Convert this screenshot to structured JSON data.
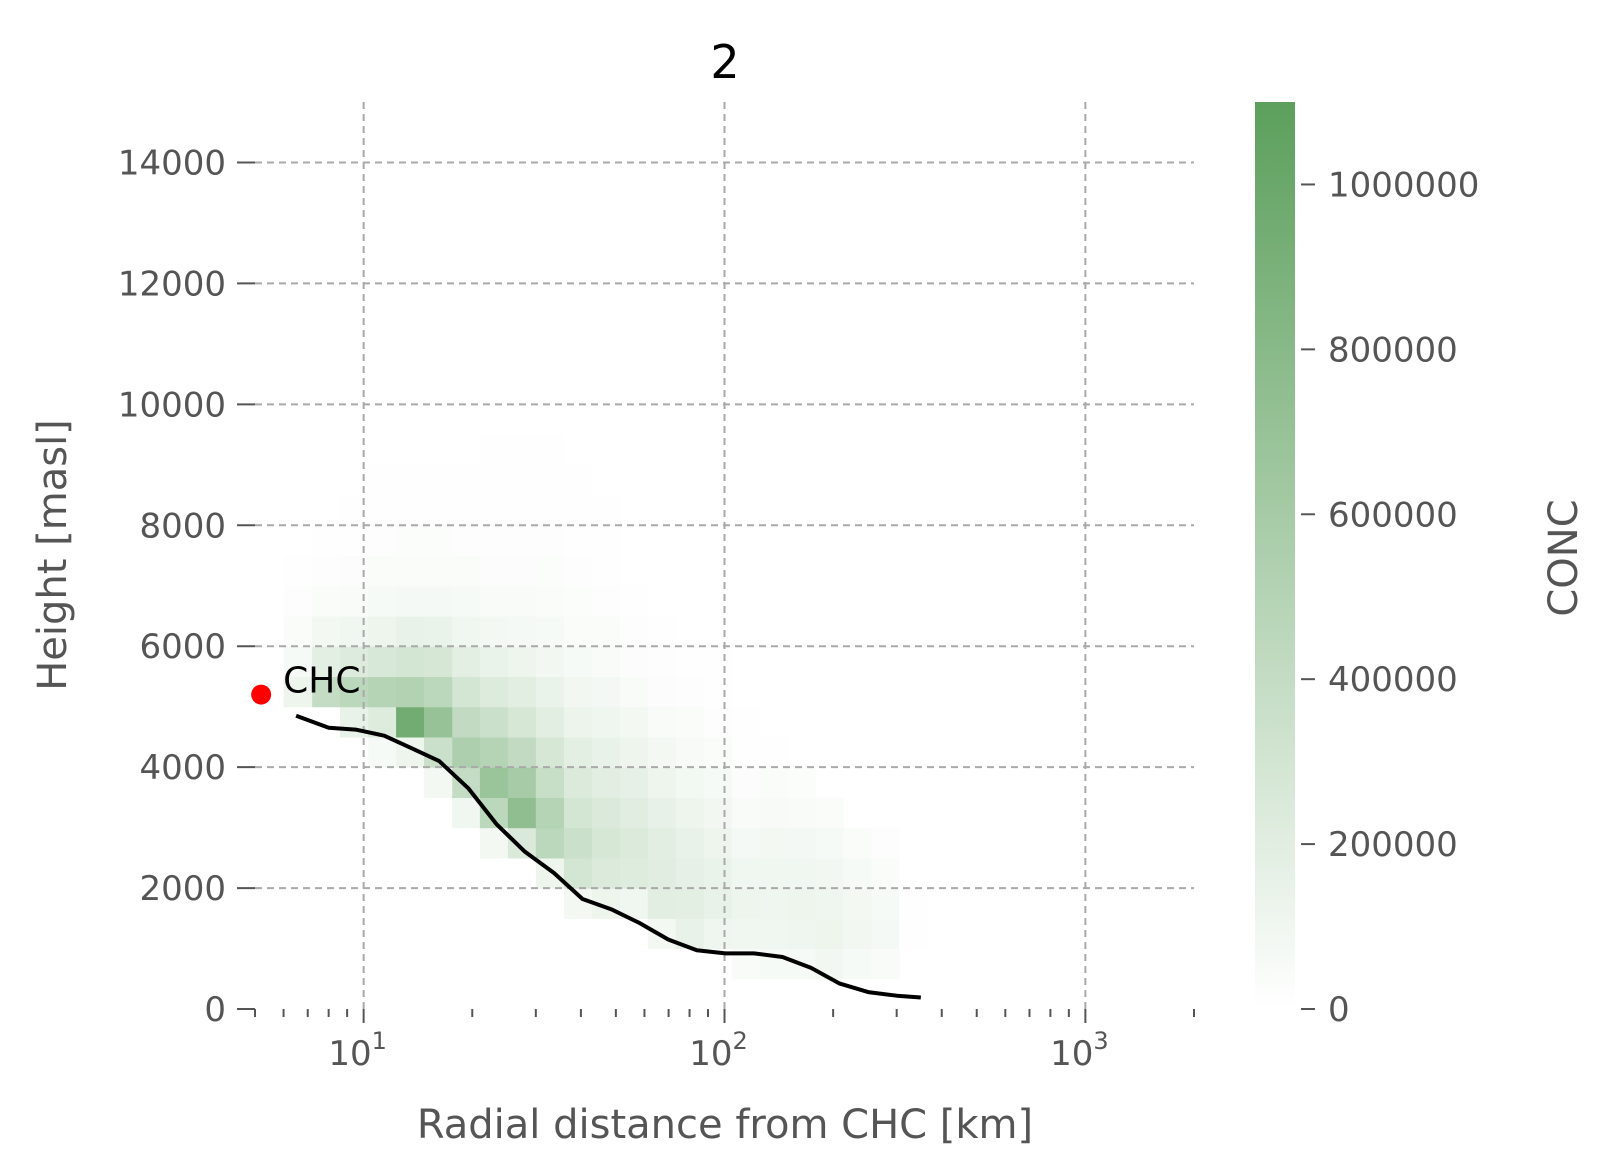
{
  "chart_data": {
    "type": "heatmap",
    "title": "2",
    "xlabel": "Radial distance from CHC [km]",
    "ylabel": "Height [masl]",
    "xscale": "log",
    "xlim": [
      5,
      2000
    ],
    "ylim": [
      0,
      15000
    ],
    "x_major_ticks": [
      {
        "value": 10,
        "base": "10",
        "exp": "1"
      },
      {
        "value": 100,
        "base": "10",
        "exp": "2"
      },
      {
        "value": 1000,
        "base": "10",
        "exp": "3"
      }
    ],
    "y_ticks": [
      0,
      2000,
      4000,
      6000,
      8000,
      10000,
      12000,
      14000
    ],
    "y_tick_labels": [
      "0",
      "2000",
      "4000",
      "6000",
      "8000",
      "10000",
      "12000",
      "14000"
    ],
    "grid": true,
    "colorbar": {
      "label": "CONC",
      "min": 0,
      "max": 1100000,
      "ticks": [
        0,
        200000,
        400000,
        600000,
        800000,
        1000000
      ],
      "tick_labels": [
        "0",
        "200000",
        "400000",
        "600000",
        "800000",
        "1000000"
      ],
      "color_low": "#ffffff",
      "color_high": "#5c9f5c"
    },
    "heatmap_columns": [
      {
        "x0": 6.0,
        "x1": 7.2,
        "cells": [
          [
            5000,
            120000
          ],
          [
            5500,
            60000
          ],
          [
            6000,
            35000
          ],
          [
            6500,
            18000
          ],
          [
            7000,
            8000
          ]
        ]
      },
      {
        "x0": 7.2,
        "x1": 8.6,
        "cells": [
          [
            5000,
            400000
          ],
          [
            5500,
            180000
          ],
          [
            6000,
            80000
          ],
          [
            6500,
            40000
          ],
          [
            7000,
            20000
          ],
          [
            7500,
            10000
          ]
        ]
      },
      {
        "x0": 8.6,
        "x1": 10.3,
        "cells": [
          [
            4500,
            150000
          ],
          [
            5000,
            450000
          ],
          [
            5500,
            230000
          ],
          [
            6000,
            100000
          ],
          [
            6500,
            50000
          ],
          [
            7000,
            30000
          ],
          [
            7500,
            15000
          ],
          [
            8000,
            8000
          ]
        ]
      },
      {
        "x0": 10.3,
        "x1": 12.3,
        "cells": [
          [
            4000,
            60000
          ],
          [
            4500,
            220000
          ],
          [
            5000,
            500000
          ],
          [
            5500,
            260000
          ],
          [
            6000,
            120000
          ],
          [
            6500,
            60000
          ],
          [
            7000,
            35000
          ],
          [
            7500,
            20000
          ],
          [
            8000,
            12000
          ],
          [
            8500,
            6000
          ]
        ]
      },
      {
        "x0": 12.3,
        "x1": 14.7,
        "cells": [
          [
            4000,
            120000
          ],
          [
            4500,
            950000
          ],
          [
            5000,
            520000
          ],
          [
            5500,
            300000
          ],
          [
            6000,
            150000
          ],
          [
            6500,
            70000
          ],
          [
            7000,
            40000
          ],
          [
            7500,
            25000
          ],
          [
            8000,
            15000
          ],
          [
            8500,
            8000
          ]
        ]
      },
      {
        "x0": 14.7,
        "x1": 17.6,
        "cells": [
          [
            3500,
            80000
          ],
          [
            4000,
            350000
          ],
          [
            4500,
            700000
          ],
          [
            5000,
            450000
          ],
          [
            5500,
            280000
          ],
          [
            6000,
            140000
          ],
          [
            6500,
            70000
          ],
          [
            7000,
            40000
          ],
          [
            7500,
            25000
          ],
          [
            8000,
            15000
          ],
          [
            8500,
            10000
          ],
          [
            9000,
            5000
          ]
        ]
      },
      {
        "x0": 17.6,
        "x1": 21.0,
        "cells": [
          [
            3000,
            100000
          ],
          [
            3500,
            400000
          ],
          [
            4000,
            550000
          ],
          [
            4500,
            420000
          ],
          [
            5000,
            300000
          ],
          [
            5500,
            180000
          ],
          [
            6000,
            100000
          ],
          [
            6500,
            60000
          ],
          [
            7000,
            35000
          ],
          [
            7500,
            22000
          ],
          [
            8000,
            14000
          ],
          [
            8500,
            9000
          ],
          [
            9000,
            5000
          ]
        ]
      },
      {
        "x0": 21.0,
        "x1": 25.1,
        "cells": [
          [
            2500,
            80000
          ],
          [
            3000,
            450000
          ],
          [
            3500,
            680000
          ],
          [
            4000,
            500000
          ],
          [
            4500,
            350000
          ],
          [
            5000,
            230000
          ],
          [
            5500,
            140000
          ],
          [
            6000,
            80000
          ],
          [
            6500,
            50000
          ],
          [
            7000,
            30000
          ],
          [
            7500,
            20000
          ],
          [
            8000,
            13000
          ],
          [
            8500,
            9000
          ],
          [
            9000,
            6000
          ],
          [
            9500,
            4000
          ]
        ]
      },
      {
        "x0": 25.1,
        "x1": 30.0,
        "cells": [
          [
            2500,
            250000
          ],
          [
            3000,
            750000
          ],
          [
            3500,
            600000
          ],
          [
            4000,
            420000
          ],
          [
            4500,
            280000
          ],
          [
            5000,
            190000
          ],
          [
            5500,
            120000
          ],
          [
            6000,
            70000
          ],
          [
            6500,
            45000
          ],
          [
            7000,
            30000
          ],
          [
            7500,
            20000
          ],
          [
            8000,
            14000
          ],
          [
            8500,
            10000
          ],
          [
            9000,
            7000
          ],
          [
            9500,
            5000
          ],
          [
            10000,
            3000
          ]
        ]
      },
      {
        "x0": 30.0,
        "x1": 35.9,
        "cells": [
          [
            2000,
            120000
          ],
          [
            2500,
            450000
          ],
          [
            3000,
            500000
          ],
          [
            3500,
            380000
          ],
          [
            4000,
            280000
          ],
          [
            4500,
            200000
          ],
          [
            5000,
            140000
          ],
          [
            5500,
            90000
          ],
          [
            6000,
            60000
          ],
          [
            6500,
            40000
          ],
          [
            7000,
            27000
          ],
          [
            7500,
            18000
          ],
          [
            8000,
            13000
          ],
          [
            8500,
            9000
          ],
          [
            9000,
            6000
          ],
          [
            9500,
            4000
          ]
        ]
      },
      {
        "x0": 35.9,
        "x1": 42.9,
        "cells": [
          [
            1500,
            80000
          ],
          [
            2000,
            300000
          ],
          [
            2500,
            350000
          ],
          [
            3000,
            300000
          ],
          [
            3500,
            240000
          ],
          [
            4000,
            180000
          ],
          [
            4500,
            130000
          ],
          [
            5000,
            90000
          ],
          [
            5500,
            60000
          ],
          [
            6000,
            40000
          ],
          [
            6500,
            28000
          ],
          [
            7000,
            20000
          ],
          [
            7500,
            14000
          ],
          [
            8000,
            10000
          ],
          [
            8500,
            7000
          ],
          [
            9000,
            4000
          ]
        ]
      },
      {
        "x0": 42.9,
        "x1": 51.3,
        "cells": [
          [
            1500,
            120000
          ],
          [
            2000,
            240000
          ],
          [
            2500,
            280000
          ],
          [
            3000,
            250000
          ],
          [
            3500,
            200000
          ],
          [
            4000,
            150000
          ],
          [
            4500,
            110000
          ],
          [
            5000,
            75000
          ],
          [
            5500,
            50000
          ],
          [
            6000,
            34000
          ],
          [
            6500,
            22000
          ],
          [
            7000,
            15000
          ],
          [
            7500,
            10000
          ],
          [
            8000,
            6000
          ]
        ]
      },
      {
        "x0": 51.3,
        "x1": 61.3,
        "cells": [
          [
            1500,
            100000
          ],
          [
            2000,
            220000
          ],
          [
            2500,
            240000
          ],
          [
            3000,
            210000
          ],
          [
            3500,
            170000
          ],
          [
            4000,
            120000
          ],
          [
            4500,
            80000
          ],
          [
            5000,
            50000
          ],
          [
            5500,
            30000
          ],
          [
            6000,
            18000
          ],
          [
            6500,
            10000
          ]
        ]
      },
      {
        "x0": 61.3,
        "x1": 73.3,
        "cells": [
          [
            1000,
            80000
          ],
          [
            1500,
            200000
          ],
          [
            2000,
            210000
          ],
          [
            2500,
            190000
          ],
          [
            3000,
            160000
          ],
          [
            3500,
            120000
          ],
          [
            4000,
            80000
          ],
          [
            4500,
            50000
          ],
          [
            5000,
            30000
          ],
          [
            5500,
            18000
          ],
          [
            6000,
            10000
          ],
          [
            6500,
            5000
          ]
        ]
      },
      {
        "x0": 73.3,
        "x1": 87.6,
        "cells": [
          [
            1000,
            150000
          ],
          [
            1500,
            180000
          ],
          [
            2000,
            170000
          ],
          [
            2500,
            150000
          ],
          [
            3000,
            120000
          ],
          [
            3500,
            85000
          ],
          [
            4000,
            55000
          ],
          [
            4500,
            35000
          ],
          [
            5000,
            20000
          ],
          [
            5500,
            10000
          ],
          [
            6000,
            5000
          ]
        ]
      },
      {
        "x0": 87.6,
        "x1": 104.7,
        "cells": [
          [
            1000,
            110000
          ],
          [
            1500,
            150000
          ],
          [
            2000,
            140000
          ],
          [
            2500,
            120000
          ],
          [
            3000,
            90000
          ],
          [
            3500,
            60000
          ],
          [
            4000,
            38000
          ],
          [
            4500,
            22000
          ],
          [
            5000,
            12000
          ],
          [
            5500,
            6000
          ]
        ]
      },
      {
        "x0": 104.7,
        "x1": 125.1,
        "cells": [
          [
            500,
            50000
          ],
          [
            1000,
            100000
          ],
          [
            1500,
            120000
          ],
          [
            2000,
            100000
          ],
          [
            2500,
            70000
          ],
          [
            3000,
            50000
          ],
          [
            3500,
            30000
          ],
          [
            4000,
            15000
          ],
          [
            4500,
            8000
          ]
        ]
      },
      {
        "x0": 125.1,
        "x1": 149.5,
        "cells": [
          [
            500,
            60000
          ],
          [
            1000,
            100000
          ],
          [
            1500,
            110000
          ],
          [
            2000,
            100000
          ],
          [
            2500,
            80000
          ],
          [
            3000,
            55000
          ],
          [
            3500,
            35000
          ],
          [
            4000,
            15000
          ]
        ]
      },
      {
        "x0": 149.5,
        "x1": 178.7,
        "cells": [
          [
            500,
            60000
          ],
          [
            1000,
            110000
          ],
          [
            1500,
            120000
          ],
          [
            2000,
            100000
          ],
          [
            2500,
            75000
          ],
          [
            3000,
            45000
          ],
          [
            3500,
            25000
          ]
        ]
      },
      {
        "x0": 178.7,
        "x1": 213.6,
        "cells": [
          [
            500,
            90000
          ],
          [
            1000,
            120000
          ],
          [
            1500,
            110000
          ],
          [
            2000,
            90000
          ],
          [
            2500,
            60000
          ],
          [
            3000,
            35000
          ]
        ]
      },
      {
        "x0": 213.6,
        "x1": 255.2,
        "cells": [
          [
            500,
            60000
          ],
          [
            1000,
            90000
          ],
          [
            1500,
            80000
          ],
          [
            2000,
            60000
          ],
          [
            2500,
            35000
          ]
        ]
      },
      {
        "x0": 255.2,
        "x1": 305.0,
        "cells": [
          [
            500,
            50000
          ],
          [
            1000,
            70000
          ],
          [
            1500,
            60000
          ],
          [
            2000,
            40000
          ],
          [
            2500,
            20000
          ]
        ]
      },
      {
        "x0": 305.0,
        "x1": 364.5,
        "cells": [
          [
            1000,
            8000
          ],
          [
            1500,
            6000
          ],
          [
            2000,
            5000
          ],
          [
            2500,
            3000
          ]
        ]
      }
    ],
    "line_series": {
      "color": "#000000",
      "x": [
        6.5,
        8.0,
        9.5,
        11.4,
        13.5,
        16.2,
        19.5,
        23.4,
        28.0,
        33.7,
        40.4,
        48.5,
        58.2,
        69.8,
        83.8,
        100.6,
        120.7,
        144.8,
        173.8,
        208.5,
        250.2,
        300.3,
        350.0
      ],
      "y": [
        4850,
        4650,
        4620,
        4520,
        4320,
        4100,
        3650,
        3050,
        2600,
        2250,
        1820,
        1650,
        1420,
        1150,
        970,
        920,
        920,
        860,
        680,
        420,
        280,
        220,
        190
      ]
    },
    "annotation": {
      "text": "CHC",
      "x": 5.2,
      "y": 5200,
      "marker_color": "#ff0000"
    }
  }
}
